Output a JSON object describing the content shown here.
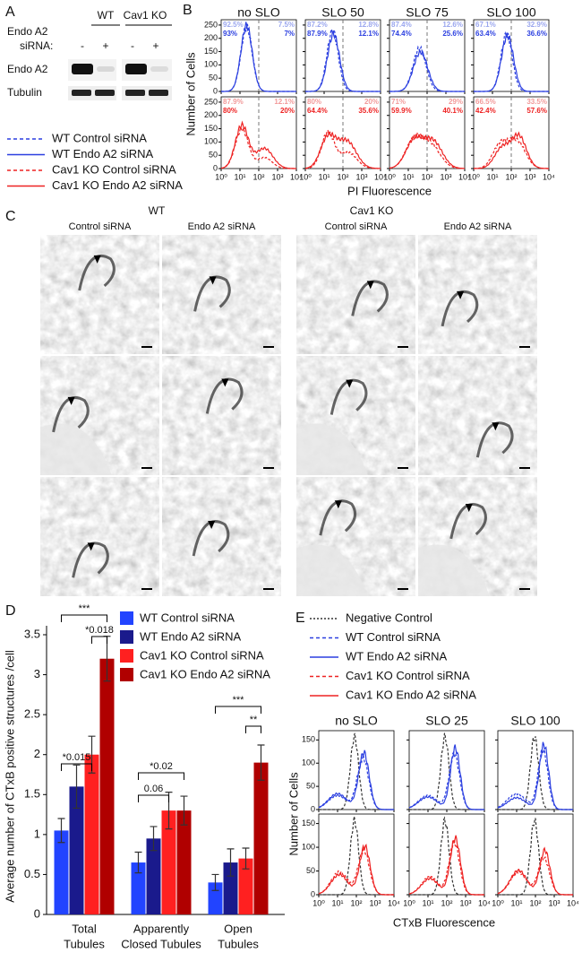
{
  "panel_a": {
    "label": "A",
    "groups": [
      "WT",
      "Cav1 KO"
    ],
    "protein_label": "Endo A2",
    "sirna_label": "siRNA:",
    "sirna": [
      "-",
      "+",
      "-",
      "+"
    ],
    "blots": [
      "Endo A2",
      "Tubulin"
    ]
  },
  "legend_b": [
    {
      "name": "WT Control siRNA",
      "color": "#2b3fe0",
      "dashed": true
    },
    {
      "name": "WT Endo A2 siRNA",
      "color": "#2b3fe0",
      "dashed": false
    },
    {
      "name": "Cav1 KO Control siRNA",
      "color": "#ee2222",
      "dashed": true
    },
    {
      "name": "Cav1 KO Endo A2 siRNA",
      "color": "#ee2222",
      "dashed": false
    }
  ],
  "panel_b": {
    "label": "B",
    "y_label": "Number of Cells",
    "x_label": "PI Fluorescence",
    "xlim": [
      1,
      10000
    ],
    "xticks": [
      {
        "value": 1,
        "label": "10⁰"
      },
      {
        "value": 10,
        "label": "10¹"
      },
      {
        "value": 100,
        "label": "10²"
      },
      {
        "value": 1000,
        "label": "10³"
      },
      {
        "value": 10000,
        "label": "10⁴"
      }
    ],
    "ylim": [
      0,
      270
    ],
    "yticks": [
      0,
      50,
      100,
      150,
      200,
      250
    ],
    "columns": [
      {
        "title": "no SLO",
        "wt_control": [
          "92.5%",
          "7.5%"
        ],
        "wt_endo": [
          "93%",
          "7%"
        ],
        "cav1_control": [
          "87.9%",
          "12.1%"
        ],
        "cav1_endo": [
          "80%",
          "20%"
        ]
      },
      {
        "title": "SLO 50",
        "wt_control": [
          "87.2%",
          "12.8%"
        ],
        "wt_endo": [
          "87.9%",
          "12.1%"
        ],
        "cav1_control": [
          "80%",
          "20%"
        ],
        "cav1_endo": [
          "64.4%",
          "35.6%"
        ]
      },
      {
        "title": "SLO 75",
        "wt_control": [
          "87.4%",
          "12.6%"
        ],
        "wt_endo": [
          "74.4%",
          "25.6%"
        ],
        "cav1_control": [
          "71%",
          "29%"
        ],
        "cav1_endo": [
          "59.9%",
          "40.1%"
        ]
      },
      {
        "title": "SLO 100",
        "wt_control": [
          "67.1%",
          "32.9%"
        ],
        "wt_endo": [
          "63.4%",
          "36.6%"
        ],
        "cav1_control": [
          "66.5%",
          "33.5%"
        ],
        "cav1_endo": [
          "42.4%",
          "57.6%"
        ]
      }
    ]
  },
  "panel_c": {
    "label": "C",
    "groups": [
      "WT",
      "Cav1 KO"
    ],
    "columns": [
      "Control siRNA",
      "Endo A2 siRNA",
      "Control siRNA",
      "Endo A2 siRNA"
    ]
  },
  "chart_data": {
    "type": "bar",
    "label": "D",
    "y_label": "Average number of CTxB positive structures /cell",
    "categories": [
      [
        "Total",
        "Tubules"
      ],
      [
        "Apparently",
        "Closed Tubules"
      ],
      [
        "Open",
        "Tubules"
      ]
    ],
    "series": [
      {
        "name": "WT Control siRNA",
        "color": "#2244ff",
        "values": [
          1.05,
          0.65,
          0.4
        ],
        "errors": [
          0.15,
          0.13,
          0.1
        ]
      },
      {
        "name": "WT Endo A2 siRNA",
        "color": "#1a1a8c",
        "values": [
          1.6,
          0.95,
          0.65
        ],
        "errors": [
          0.27,
          0.15,
          0.17
        ]
      },
      {
        "name": "Cav1 KO Control siRNA",
        "color": "#ff2020",
        "values": [
          2.0,
          1.3,
          0.7
        ],
        "errors": [
          0.23,
          0.23,
          0.13
        ]
      },
      {
        "name": "Cav1 KO Endo A2 siRNA",
        "color": "#b00000",
        "values": [
          3.2,
          1.3,
          1.9
        ],
        "errors": [
          0.28,
          0.18,
          0.22
        ]
      }
    ],
    "ylim": [
      0,
      3.5
    ],
    "yticks": [
      0,
      0.5,
      1,
      1.5,
      2,
      2.5,
      3,
      3.5
    ],
    "annotations": [
      "***",
      "*0.018",
      "*0.015",
      "*0.02",
      "0.06",
      "***",
      "**"
    ]
  },
  "panel_e": {
    "label": "E",
    "legend": [
      {
        "name": "Negative Control",
        "color": "#333333",
        "dashed": true
      },
      {
        "name": "WT Control siRNA",
        "color": "#2b3fe0",
        "dashed": true
      },
      {
        "name": "WT Endo A2 siRNA",
        "color": "#2b3fe0",
        "dashed": false
      },
      {
        "name": "Cav1 KO Control siRNA",
        "color": "#ee2222",
        "dashed": true
      },
      {
        "name": "Cav1 KO Endo A2 siRNA",
        "color": "#ee2222",
        "dashed": false
      }
    ],
    "columns": [
      "no SLO",
      "SLO 25",
      "SLO 100"
    ],
    "y_label": "Number of Cells",
    "x_label": "CTxB Fluorescence",
    "xlim": [
      1,
      10000
    ],
    "xticks": [
      {
        "value": 1,
        "label": "10⁰"
      },
      {
        "value": 10,
        "label": "10¹"
      },
      {
        "value": 100,
        "label": "10²"
      },
      {
        "value": 1000,
        "label": "10³"
      },
      {
        "value": 10000,
        "label": "10⁴"
      }
    ],
    "ylim": [
      0,
      170
    ],
    "yticks": [
      0,
      50,
      100,
      150
    ]
  }
}
